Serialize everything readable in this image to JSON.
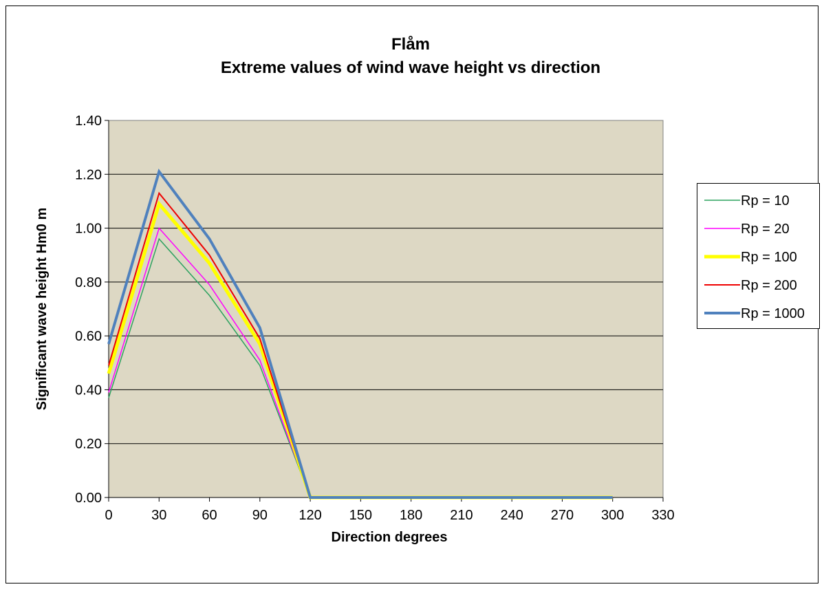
{
  "chart_data": {
    "type": "line",
    "title": "Flåm",
    "subtitle": "Extreme values of wind wave height vs direction",
    "xlabel": "Direction degrees",
    "ylabel": "Significant wave height Hm0 m",
    "xlim": [
      0,
      330
    ],
    "ylim": [
      0,
      1.4
    ],
    "x_ticks": [
      "0",
      "30",
      "60",
      "90",
      "120",
      "150",
      "180",
      "210",
      "240",
      "270",
      "300",
      "330"
    ],
    "y_ticks": [
      "0.00",
      "0.20",
      "0.40",
      "0.60",
      "0.80",
      "1.00",
      "1.20",
      "1.40"
    ],
    "grid": "horizontal",
    "legend_position": "right",
    "plot_background": "#ddd8c4",
    "x": [
      0,
      30,
      60,
      90,
      120,
      150,
      180,
      210,
      240,
      270,
      300
    ],
    "series": [
      {
        "name": "Rp = 10",
        "color": "#2ca25f",
        "width": 1.5,
        "values": [
          0.37,
          0.96,
          0.75,
          0.49,
          0,
          0,
          0,
          0,
          0,
          0,
          0
        ]
      },
      {
        "name": "Rp = 20",
        "color": "#ff00ff",
        "width": 1.5,
        "values": [
          0.39,
          1.0,
          0.79,
          0.51,
          0,
          0,
          0,
          0,
          0,
          0,
          0
        ]
      },
      {
        "name": "Rp = 100",
        "color": "#ffff00",
        "width": 5,
        "values": [
          0.46,
          1.09,
          0.87,
          0.57,
          0,
          0,
          0,
          0,
          0,
          0,
          0
        ]
      },
      {
        "name": "Rp = 200",
        "color": "#ee0000",
        "width": 2,
        "values": [
          0.49,
          1.13,
          0.9,
          0.59,
          0,
          0,
          0,
          0,
          0,
          0,
          0
        ]
      },
      {
        "name": "Rp = 1000",
        "color": "#4f81bd",
        "width": 4,
        "values": [
          0.57,
          1.21,
          0.96,
          0.63,
          0,
          0,
          0,
          0,
          0,
          0,
          0
        ]
      }
    ]
  }
}
